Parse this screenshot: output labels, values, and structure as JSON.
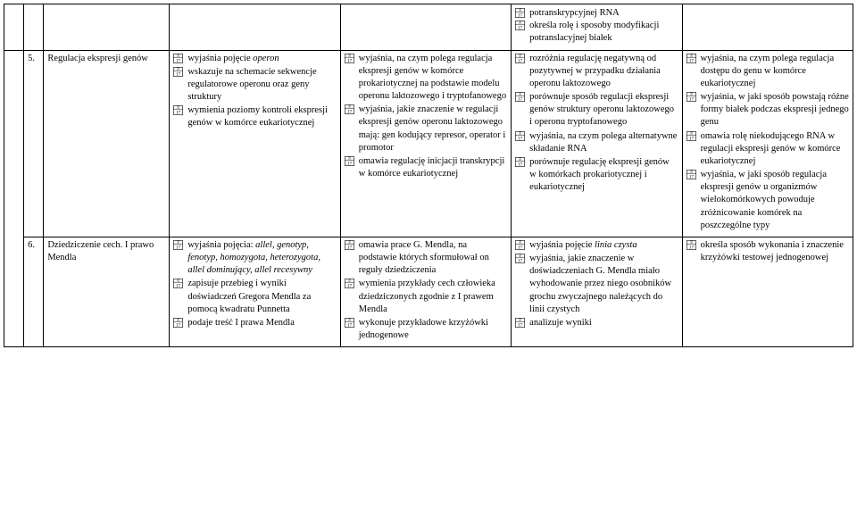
{
  "rowTop": {
    "col5": [
      "potranskrypcyjnej RNA",
      "określa rolę i sposoby modyfikacji potranslacyjnej białek"
    ]
  },
  "row5": {
    "num": "5.",
    "topic": "Regulacja ekspresji genów",
    "c1": [
      "wyjaśnia pojęcie <i>operon</i>",
      "wskazuje na schemacie sekwencje regulatorowe operonu oraz geny struktury",
      "wymienia poziomy kontroli ekspresji genów w komórce eukariotycznej"
    ],
    "c2": [
      "wyjaśnia, na czym polega regulacja ekspresji genów w komórce prokariotycznej na podstawie modelu operonu laktozowego i tryptofanowego",
      "wyjaśnia, jakie znaczenie w regulacji ekspresji genów operonu laktozowego mają: gen kodujący represor, operator i promotor",
      "omawia regulację inicjacji transkrypcji w komórce eukariotycznej"
    ],
    "c3": [
      "rozróżnia regulację negatywną od pozytywnej w przypadku działania operonu laktozowego",
      "porównuje sposób regulacji ekspresji genów struktury operonu laktozowego i operonu tryptofanowego",
      "wyjaśnia, na czym polega alternatywne składanie RNA",
      "porównuje regulację ekspresji genów w komórkach prokariotycznej i eukariotycznej"
    ],
    "c4": [
      "wyjaśnia, na czym polega regulacja dostępu do genu w komórce eukariotycznej",
      "wyjaśnia, w jaki sposób powstają różne formy białek podczas ekspresji jednego genu",
      "omawia rolę niekodującego RNA w regulacji ekspresji genów w komórce eukariotycznej",
      "wyjaśnia, w jaki sposób regulacja ekspresji genów u organizmów wielokomórkowych powoduje zróżnicowanie komórek na poszczególne typy"
    ]
  },
  "row6": {
    "num": "6.",
    "topic": "Dziedziczenie cech. I prawo Mendla",
    "c1": [
      "wyjaśnia pojęcia: <i>allel, genotyp, fenotyp, homozygota, heterozygota, allel dominujący, allel recesywny</i>",
      "zapisuje przebieg i wyniki doświadczeń Gregora Mendla za pomocą kwadratu Punnetta",
      "podaje treść I prawa Mendla"
    ],
    "c2": [
      "omawia prace G. Mendla, na podstawie których sformułował on reguły dziedziczenia",
      "wymienia przykłady cech człowieka dziedziczonych zgodnie z I prawem Mendla",
      "wykonuje przykładowe krzyżówki jednogenowe"
    ],
    "c3": [
      "wyjaśnia pojęcie <i>linia czysta</i>",
      "wyjaśnia, jakie znaczenie w doświadczeniach G. Mendla miało wyhodowanie przez niego osobników grochu zwyczajnego należących do linii czystych",
      "analizuje wyniki"
    ],
    "c4": [
      "określa sposób wykonania i znaczenie krzyżówki testowej jednogenowej"
    ]
  }
}
